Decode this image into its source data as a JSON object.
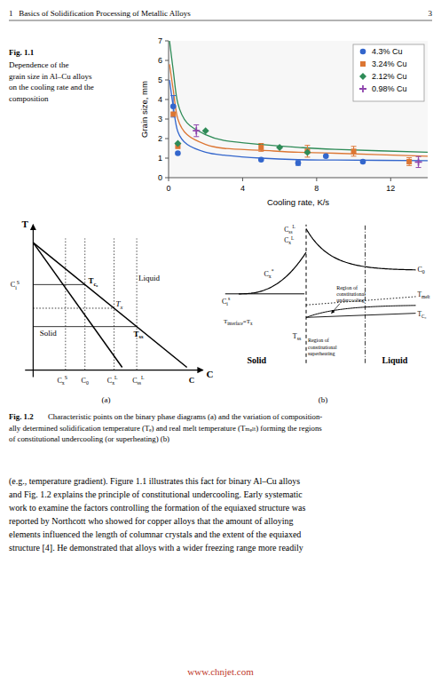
{
  "chart_data": {
    "type": "line",
    "title": "Fig. 1.1",
    "subtitle": [
      "Dependence of the",
      "grain size in Al–Cu alloys",
      "on the cooling rate and the",
      "composition"
    ],
    "x_label": "Cooling rate, K/s",
    "y_label": "Grain size, mm",
    "xlim": [
      0,
      14
    ],
    "ylim": [
      0,
      7
    ],
    "xticks": [
      0,
      4,
      8,
      12
    ],
    "yticks": [
      0,
      1,
      2,
      3,
      4,
      5,
      6,
      7
    ],
    "grid": false,
    "legend": "upper right",
    "series": [
      {
        "name": "4.3% Cu",
        "marker": "circle",
        "color": "#3366cc",
        "x": [
          0.25,
          0.5,
          5.0,
          7.0,
          8.5,
          10.5
        ],
        "values": [
          3.65,
          1.25,
          0.92,
          0.75,
          1.1,
          0.82
        ],
        "yerr": [
          0.55,
          0.0,
          0.0,
          0.12,
          0.0,
          0.0
        ],
        "curve_x": [
          0.05,
          0.25,
          0.5,
          1.0,
          2.0,
          3.0,
          5.0,
          7.0,
          9.0,
          14.0
        ],
        "curve_y": [
          5.0,
          3.65,
          2.35,
          1.7,
          1.3,
          1.15,
          1.0,
          0.92,
          0.9,
          0.87
        ]
      },
      {
        "name": "3.24% Cu",
        "marker": "square",
        "color": "#dc7633",
        "x": [
          0.25,
          0.5,
          5.0,
          7.5,
          10.0,
          13.0
        ],
        "values": [
          3.25,
          1.6,
          1.55,
          1.35,
          1.35,
          0.82
        ],
        "yerr": [
          0.0,
          0.0,
          0.2,
          0.3,
          0.25,
          0.2
        ],
        "curve_x": [
          0.05,
          0.25,
          0.5,
          1.0,
          2.0,
          3.0,
          5.0,
          7.0,
          9.0,
          14.0
        ],
        "curve_y": [
          5.8,
          4.5,
          3.0,
          2.2,
          1.7,
          1.5,
          1.4,
          1.3,
          1.25,
          1.1
        ]
      },
      {
        "name": "2.12% Cu",
        "marker": "diamond",
        "color": "#2e8b57",
        "x": [
          0.5,
          2.0,
          6.0,
          7.5
        ],
        "values": [
          1.75,
          2.4,
          1.55,
          1.3
        ],
        "yerr": [
          0.0,
          0.0,
          0.0,
          0.0
        ],
        "curve_x": [
          0.05,
          0.25,
          0.5,
          1.0,
          2.0,
          3.0,
          5.0,
          7.0,
          9.0,
          14.0
        ],
        "curve_y": [
          7.0,
          5.5,
          3.8,
          2.8,
          2.2,
          1.9,
          1.7,
          1.55,
          1.45,
          1.3
        ]
      },
      {
        "name": "0.98% Cu",
        "marker": "plus",
        "color": "#8e44ad",
        "x": [
          1.5,
          13.5
        ],
        "values": [
          2.4,
          0.8
        ],
        "yerr": [
          0.3,
          0.28
        ]
      }
    ],
    "annotations": {
      "page_title": "1   Basics of Solidification Processing of Metallic Alloys",
      "page_number": "3",
      "diagram_a": [
        "T",
        "C",
        {
          "parts": [
            {
              "base": "C",
              "sub": "x",
              "sup": "S"
            }
          ]
        },
        {
          "parts": [
            {
              "base": "C",
              "sub": "0"
            }
          ]
        },
        {
          "parts": [
            {
              "base": "C",
              "sub": "x",
              "sup": "L"
            }
          ]
        },
        {
          "parts": [
            {
              "base": "C",
              "sub": "ss",
              "sup": "L"
            }
          ]
        },
        "C",
        {
          "parts": [
            {
              "base": "C",
              "sub": "i",
              "sup": "S"
            }
          ]
        },
        {
          "parts": [
            {
              "base": "T",
              "sub": "c₀"
            }
          ]
        },
        {
          "parts": [
            {
              "base": "T",
              "sub": "x"
            }
          ]
        },
        {
          "parts": [
            {
              "base": "T",
              "sub": "ss"
            }
          ]
        },
        "Liquid",
        "Solid",
        "(a)"
      ],
      "diagram_b": [
        {
          "parts": [
            {
              "base": "C",
              "sub": "ss",
              "sup": "L"
            }
          ]
        },
        {
          "parts": [
            {
              "base": "C",
              "sub": "x",
              "sup": "L"
            }
          ]
        },
        {
          "parts": [
            {
              "base": "C",
              "sub": "0"
            }
          ]
        },
        {
          "parts": [
            {
              "base": "C",
              "sub": "x",
              "sup": "*"
            }
          ]
        },
        {
          "parts": [
            {
              "base": "C",
              "sub": "i",
              "sup": "s"
            }
          ]
        },
        {
          "parts": [
            {
              "base": "T",
              "sub": "C₀"
            }
          ]
        },
        {
          "parts": [
            {
              "base": "T",
              "sub": "melt"
            }
          ]
        },
        {
          "parts": [
            {
              "base": "T",
              "sub": "interface"
            },
            {
              "base": "=T",
              "sub": "x"
            }
          ]
        },
        {
          "parts": [
            {
              "base": "T",
              "sub": "ss"
            }
          ]
        },
        {
          "lines": [
            "Region of",
            "constitutional",
            "undercooling"
          ]
        },
        {
          "lines": [
            "Region of",
            "constitutional",
            "superheating"
          ]
        },
        "Solid",
        "Liquid",
        "(b)"
      ],
      "fig2_caption": {
        "label": "Fig. 1.2",
        "lines": [
          "Characteristic points on the binary phase diagrams (a) and the variation of composition-",
          "ally determined solidification temperature (Τₑ) and real melt temperature (Τₘₑₗₜ) forming the regions",
          "of constitutional undercooling (or superheating) (b)"
        ]
      },
      "body_text": [
        "(e.g., temperature gradient). Figure 1.1 illustrates this fact for binary Al–Cu alloys",
        "and Fig. 1.2 explains the principle of constitutional undercooling. Early systematic",
        "work to examine the factors controlling the formation of the equiaxed structure was",
        "reported by Northcott who showed for copper alloys that the amount of alloying",
        "elements influenced the length of columnar crystals and the extent of the equiaxed",
        "structure [4]. He demonstrated that alloys with a wider freezing range more readily"
      ],
      "watermark": {
        "text": "www.chnjet.com",
        "color": "#c0392b"
      }
    }
  }
}
